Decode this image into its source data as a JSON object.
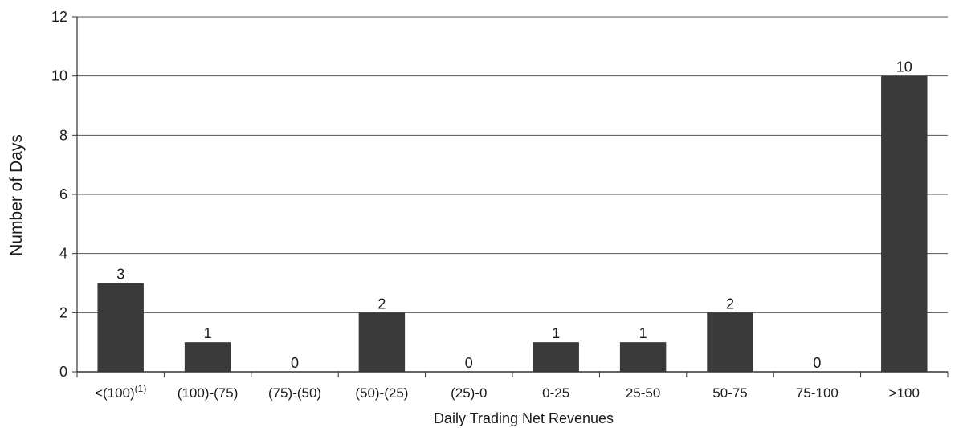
{
  "chart_data": {
    "type": "bar",
    "categories": [
      "<(100)",
      "(100)-(75)",
      "(75)-(50)",
      "(50)-(25)",
      "(25)-0",
      "0-25",
      "25-50",
      "50-75",
      "75-100",
      ">100"
    ],
    "category_superscripts": [
      "(1)",
      "",
      "",
      "",
      "",
      "",
      "",
      "",
      "",
      ""
    ],
    "values": [
      3,
      1,
      0,
      2,
      0,
      1,
      1,
      2,
      0,
      10
    ],
    "data_labels": [
      "3",
      "1",
      "0",
      "2",
      "0",
      "1",
      "1",
      "2",
      "0",
      "10"
    ],
    "xlabel": "Daily Trading Net Revenues",
    "ylabel": "Number of Days",
    "ylim": [
      0,
      12
    ],
    "yticks": [
      0,
      2,
      4,
      6,
      8,
      10,
      12
    ],
    "grid": true,
    "bar_color": "#3a3a3a"
  }
}
